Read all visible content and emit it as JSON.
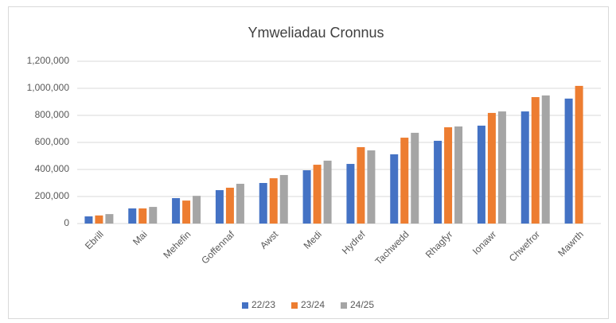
{
  "chart_data": {
    "type": "bar",
    "title": "Ymweliadau Cronnus",
    "categories": [
      "Ebrill",
      "Mai",
      "Mehefin",
      "Goffennaf",
      "Awst",
      "Medi",
      "Hydref",
      "Tachwedd",
      "Rhagfyr",
      "Ionawr",
      "Chwefror",
      "Mawrth"
    ],
    "series": [
      {
        "name": "22/23",
        "color": "#4472c4",
        "values": [
          53000,
          112000,
          188000,
          247000,
          300000,
          394000,
          441000,
          512000,
          612000,
          724000,
          829000,
          924000
        ]
      },
      {
        "name": "23/24",
        "color": "#ed7d31",
        "values": [
          60000,
          112000,
          170000,
          265000,
          335000,
          435000,
          565000,
          635000,
          712000,
          818000,
          935000,
          1018000
        ]
      },
      {
        "name": "24/25",
        "color": "#a5a5a5",
        "values": [
          70000,
          123000,
          205000,
          294000,
          359000,
          465000,
          541000,
          671000,
          718000,
          829000,
          947000,
          null
        ]
      }
    ],
    "ylim": [
      0,
      1200000
    ],
    "yticks": [
      0,
      {
        "value": 200000,
        "label": "200,000"
      },
      {
        "value": 400000,
        "label": "400,000"
      },
      {
        "value": 600000,
        "label": "600,000"
      },
      {
        "value": 800000,
        "label": "800,000"
      },
      {
        "value": 1000000,
        "label": "1,000,000"
      },
      {
        "value": 1200000,
        "label": "1,200,000"
      }
    ],
    "grid": true,
    "legend": "bottom"
  }
}
